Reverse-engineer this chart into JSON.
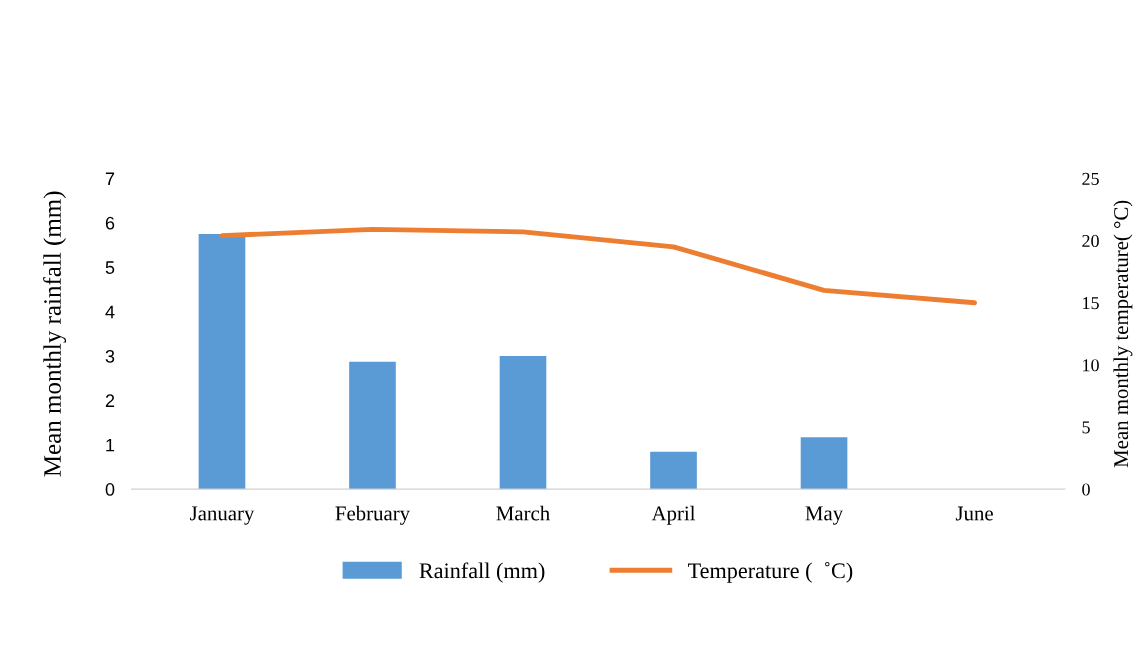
{
  "chart_data": {
    "type": "bar",
    "categories": [
      "January",
      "February",
      "March",
      "April",
      "May",
      "June"
    ],
    "series": [
      {
        "name": "Rainfall (mm)",
        "color": "#5b9bd5",
        "values": [
          5.75,
          2.87,
          3.0,
          0.84,
          1.17,
          0
        ]
      },
      {
        "name": "Temperature (  ˚C)",
        "type": "line",
        "axis": "y2",
        "color": "#ed7d31",
        "values": [
          20.4,
          20.9,
          20.7,
          19.5,
          16.0,
          15.0
        ]
      }
    ],
    "ylabel": "Mean monthly rainfall (mm)",
    "y2label": "Mean monthly temperature( °C)",
    "ylim": [
      0,
      7
    ],
    "yticks": [
      0,
      1,
      2,
      3,
      4,
      5,
      6,
      7
    ],
    "y2lim": [
      0,
      25
    ],
    "y2ticks": [
      0,
      5,
      10,
      15,
      20,
      25
    ],
    "legend": "bottom",
    "grid": false
  }
}
